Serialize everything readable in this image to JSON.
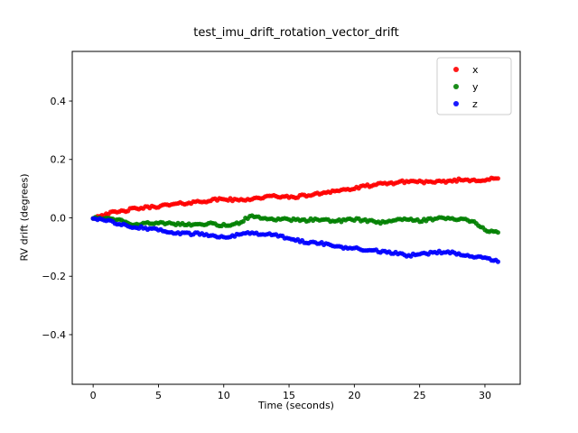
{
  "chart_data": {
    "type": "scatter",
    "title": "test_imu_drift_rotation_vector_drift",
    "xlabel": "Time (seconds)",
    "ylabel": "RV drift (degrees)",
    "xlim": [
      -1.6,
      32.7
    ],
    "ylim": [
      -0.57,
      0.57
    ],
    "xticks": [
      0,
      5,
      10,
      15,
      20,
      25,
      30
    ],
    "yticks": [
      -0.4,
      -0.2,
      0.0,
      0.2,
      0.4
    ],
    "grid": false,
    "legend_position": "upper right",
    "x": [
      0,
      1,
      2,
      3,
      4,
      5,
      6,
      7,
      8,
      9,
      10,
      11,
      12,
      13,
      14,
      15,
      16,
      17,
      18,
      19,
      20,
      21,
      22,
      23,
      24,
      25,
      26,
      27,
      28,
      29,
      30,
      31
    ],
    "series": [
      {
        "name": "x",
        "color": "#ff0000",
        "values": [
          0.0,
          0.015,
          0.02,
          0.03,
          0.035,
          0.04,
          0.045,
          0.05,
          0.055,
          0.06,
          0.065,
          0.06,
          0.065,
          0.07,
          0.075,
          0.07,
          0.075,
          0.08,
          0.09,
          0.095,
          0.1,
          0.11,
          0.115,
          0.12,
          0.125,
          0.125,
          0.12,
          0.125,
          0.13,
          0.13,
          0.13,
          0.135
        ]
      },
      {
        "name": "y",
        "color": "#008000",
        "values": [
          0.0,
          0.0,
          -0.005,
          -0.02,
          -0.02,
          -0.015,
          -0.02,
          -0.02,
          -0.025,
          -0.02,
          -0.025,
          -0.02,
          0.005,
          0.0,
          -0.005,
          -0.005,
          -0.01,
          -0.005,
          -0.01,
          -0.01,
          -0.005,
          -0.01,
          -0.015,
          -0.01,
          -0.005,
          -0.01,
          -0.005,
          0.0,
          -0.005,
          -0.01,
          -0.04,
          -0.05
        ]
      },
      {
        "name": "z",
        "color": "#0000ff",
        "values": [
          0.0,
          -0.01,
          -0.02,
          -0.03,
          -0.035,
          -0.04,
          -0.05,
          -0.055,
          -0.055,
          -0.06,
          -0.065,
          -0.06,
          -0.05,
          -0.055,
          -0.06,
          -0.07,
          -0.08,
          -0.085,
          -0.09,
          -0.1,
          -0.105,
          -0.11,
          -0.115,
          -0.12,
          -0.13,
          -0.125,
          -0.12,
          -0.115,
          -0.125,
          -0.13,
          -0.135,
          -0.15
        ]
      }
    ]
  }
}
